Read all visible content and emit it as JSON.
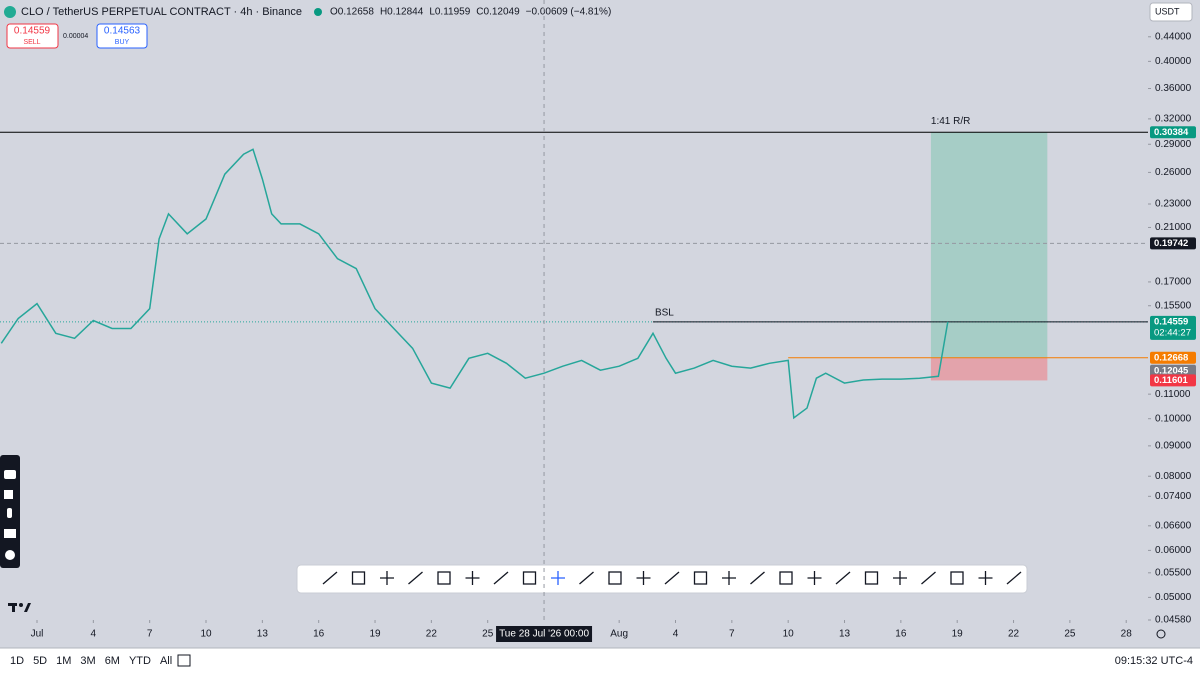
{
  "header": {
    "symbol": "CLO / TetherUS PERPETUAL CONTRACT · 4h · Binance",
    "ohlc": [
      "O0.12658",
      "H0.12844",
      "L0.11959",
      "C0.12049",
      "−0.00609 (−4.81%)"
    ]
  },
  "trade": {
    "sell_price": "0.14559",
    "sell": "SELL",
    "spread": "0.00004",
    "buy_price": "0.14563",
    "buy": "BUY"
  },
  "currency": "USDT",
  "chart_data": {
    "type": "line",
    "color": "#26a69a",
    "log_scale": true,
    "x": [
      -1.9,
      -1,
      0,
      1,
      2,
      3,
      4,
      5,
      6,
      6.5,
      7,
      8,
      9,
      10,
      11,
      11.5,
      12,
      12.5,
      13,
      14,
      15,
      16,
      17,
      18,
      19,
      20,
      21,
      22,
      23,
      24,
      25,
      26,
      27,
      28,
      29,
      30,
      31,
      32,
      32.8,
      33.5,
      34,
      35,
      36,
      37,
      38,
      39,
      40,
      40.3,
      41,
      41.5,
      42,
      43,
      44,
      45,
      46,
      47,
      48,
      48.5
    ],
    "values": [
      0.134,
      0.1475,
      0.1563,
      0.1393,
      0.1366,
      0.1464,
      0.1419,
      0.1419,
      0.1533,
      0.2009,
      0.2213,
      0.2049,
      0.217,
      0.2582,
      0.279,
      0.2844,
      0.2533,
      0.2213,
      0.2129,
      0.2129,
      0.2049,
      0.186,
      0.179,
      0.1533,
      0.1419,
      0.1314,
      0.1148,
      0.1126,
      0.1264,
      0.1289,
      0.124,
      0.117,
      0.1193,
      0.1226,
      0.1254,
      0.1207,
      0.1226,
      0.1264,
      0.1393,
      0.1264,
      0.1193,
      0.1217,
      0.1254,
      0.1226,
      0.1217,
      0.124,
      0.1254,
      0.1003,
      0.1042,
      0.117,
      0.1193,
      0.1148,
      0.1162,
      0.1166,
      0.1166,
      0.117,
      0.1179,
      0.1456
    ],
    "xlim": [
      -1.97,
      59.16
    ],
    "xticks": [
      {
        "value": 0,
        "label": "Jul"
      },
      {
        "value": 3,
        "label": "4"
      },
      {
        "value": 6,
        "label": "7"
      },
      {
        "value": 9,
        "label": "10"
      },
      {
        "value": 12,
        "label": "13"
      },
      {
        "value": 15,
        "label": "16"
      },
      {
        "value": 18,
        "label": "19"
      },
      {
        "value": 21,
        "label": "22"
      },
      {
        "value": 24,
        "label": "25"
      },
      {
        "value": 31,
        "label": "Aug"
      },
      {
        "value": 34,
        "label": "4"
      },
      {
        "value": 37,
        "label": "7"
      },
      {
        "value": 40,
        "label": "10"
      },
      {
        "value": 43,
        "label": "13"
      },
      {
        "value": 46,
        "label": "16"
      },
      {
        "value": 49,
        "label": "19"
      },
      {
        "value": 52,
        "label": "22"
      },
      {
        "value": 55,
        "label": "25"
      },
      {
        "value": 58,
        "label": "28"
      }
    ],
    "ylim": [
      0.0458,
      0.5075
    ],
    "yticks": [
      {
        "value": 0.44,
        "label": "0.44000"
      },
      {
        "value": 0.4,
        "label": "0.40000"
      },
      {
        "value": 0.36,
        "label": "0.36000"
      },
      {
        "value": 0.32,
        "label": "0.32000"
      },
      {
        "value": 0.29,
        "label": "0.29000"
      },
      {
        "value": 0.26,
        "label": "0.26000"
      },
      {
        "value": 0.23,
        "label": "0.23000"
      },
      {
        "value": 0.21,
        "label": "0.21000"
      },
      {
        "value": 0.17,
        "label": "0.17000"
      },
      {
        "value": 0.155,
        "label": "0.15500"
      },
      {
        "value": 0.11,
        "label": "0.11000"
      },
      {
        "value": 0.1,
        "label": "0.10000"
      },
      {
        "value": 0.09,
        "label": "0.09000"
      },
      {
        "value": 0.08,
        "label": "0.08000"
      },
      {
        "value": 0.074,
        "label": "0.07400"
      },
      {
        "value": 0.066,
        "label": "0.06600"
      },
      {
        "value": 0.06,
        "label": "0.06000"
      },
      {
        "value": 0.055,
        "label": "0.05500"
      },
      {
        "value": 0.05,
        "label": "0.05000"
      },
      {
        "value": 0.0458,
        "label": "0.04580"
      }
    ],
    "levels": [
      {
        "value": 0.30384,
        "color": "#089981",
        "line": "solid",
        "line_color": "#000000"
      },
      {
        "value": 0.19742,
        "color": "#131722",
        "line": "dashed",
        "line_color": "#9598a1"
      },
      {
        "value": 0.14559,
        "color": "#089981",
        "line": "dotted",
        "line_color": "#26a69a"
      },
      {
        "value": 0.12668,
        "color": "#f57c00",
        "line": "none",
        "line_color": "#f57c00"
      },
      {
        "value": 0.12045,
        "color": "#787b86",
        "line": "none",
        "line_color": "#787b86"
      },
      {
        "value": 0.11601,
        "color": "#f23645",
        "line": "none",
        "line_color": "#f23645"
      }
    ],
    "countdown": "02:44:27",
    "position": {
      "label": "1:41  R/R",
      "target": 0.30384,
      "entry": 0.12668,
      "stop": 0.11601,
      "x": [
        47.6,
        53.8
      ],
      "entry_from": 40
    },
    "annotation": {
      "text": "BSL",
      "x": 32.8,
      "value": 0.14559
    },
    "crosshair": {
      "x": 27,
      "label": "Tue 28 Jul '26  00:00"
    }
  },
  "range_buttons": [
    "1D",
    "5D",
    "1M",
    "3M",
    "6M",
    "YTD",
    "All"
  ],
  "clock": "09:15:32 UTC-4"
}
